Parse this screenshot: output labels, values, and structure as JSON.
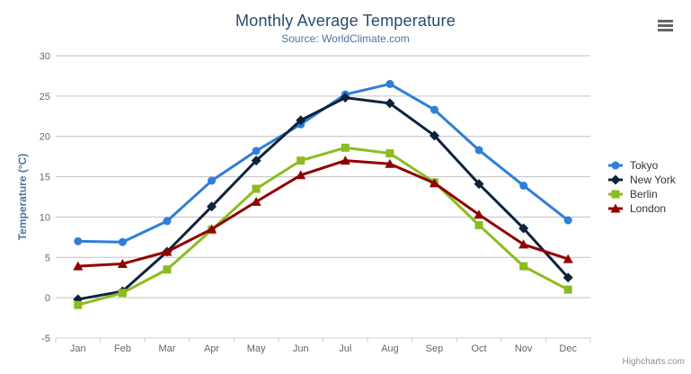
{
  "header": {
    "title": "Monthly Average Temperature",
    "subtitle": "Source: WorldClimate.com"
  },
  "menu": {
    "icon": "hamburger-icon"
  },
  "credits": "Highcharts.com",
  "chart_data": {
    "type": "line",
    "title": "Monthly Average Temperature",
    "subtitle": "Source: WorldClimate.com",
    "categories": [
      "Jan",
      "Feb",
      "Mar",
      "Apr",
      "May",
      "Jun",
      "Jul",
      "Aug",
      "Sep",
      "Oct",
      "Nov",
      "Dec"
    ],
    "xlabel": "",
    "ylabel": "Temperature (°C)",
    "ylim": [
      -5,
      30
    ],
    "ytick_interval": 5,
    "yticks": [
      30,
      25,
      20,
      15,
      10,
      5,
      0,
      -5
    ],
    "grid": true,
    "legend_position": "right",
    "series": [
      {
        "name": "Tokyo",
        "color": "#2f7ed8",
        "marker": "circle",
        "values": [
          7.0,
          6.9,
          9.5,
          14.5,
          18.2,
          21.5,
          25.2,
          26.5,
          23.3,
          18.3,
          13.9,
          9.6
        ]
      },
      {
        "name": "New York",
        "color": "#0d233a",
        "marker": "diamond",
        "values": [
          -0.2,
          0.8,
          5.7,
          11.3,
          17.0,
          22.0,
          24.8,
          24.1,
          20.1,
          14.1,
          8.6,
          2.5
        ]
      },
      {
        "name": "Berlin",
        "color": "#8bbc21",
        "marker": "square",
        "values": [
          -0.9,
          0.6,
          3.5,
          8.4,
          13.5,
          17.0,
          18.6,
          17.9,
          14.3,
          9.0,
          3.9,
          1.0
        ]
      },
      {
        "name": "London",
        "color": "#910000",
        "marker": "triangle",
        "values": [
          3.9,
          4.2,
          5.7,
          8.5,
          11.9,
          15.2,
          17.0,
          16.6,
          14.2,
          10.3,
          6.6,
          4.8
        ]
      }
    ],
    "colors": {
      "grid": "#c0c0c0",
      "axis_line": "#c0d0e0",
      "tick": "#c0d0e0",
      "axis_labels": "#666666",
      "axis_title": "#4d759e",
      "title": "#274b6d",
      "subtitle": "#4d759e",
      "legend_text": "#333333",
      "credits_text": "#909090",
      "menu_icon": "#666666"
    }
  }
}
